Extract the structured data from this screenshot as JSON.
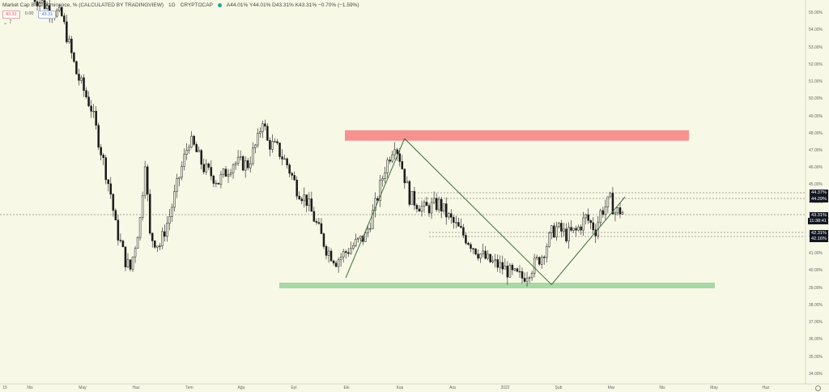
{
  "header": {
    "title": "Market Cap BTC Dominance, % (CALCULATED BY TRADINGVIEW)",
    "interval": "1G",
    "source": "CRYPTOCAP",
    "ohlc": "A44.01% Y44.01% D43.31% K43.31% −0.70% (−1.59%)"
  },
  "pills": {
    "sell": "43.31",
    "spread": "0.00",
    "buy": "43.31"
  },
  "collapse": {
    "chevron": "⌄",
    "count": "7"
  },
  "price_tags": {
    "top_resistance_a": "44.37%",
    "top_resistance_b": "44.29%",
    "current_price": "43.31%",
    "countdown": "11:38:41",
    "support_a": "42.31%",
    "support_b": "42.16%"
  },
  "colors": {
    "background": "#f8f8e6",
    "resistance_zone": "#f5928f",
    "support_zone": "#a8d8a5",
    "candles": "#1a1a1a",
    "trend_line": "#3a6b3a"
  },
  "chart_data": {
    "type": "candlestick",
    "title": "Market Cap BTC Dominance, %",
    "ylabel": "",
    "ylim": [
      33.8,
      55.2
    ],
    "y_ticks": [
      "55.00%",
      "54.00%",
      "53.00%",
      "52.00%",
      "51.00%",
      "50.00%",
      "49.00%",
      "48.00%",
      "47.00%",
      "46.00%",
      "45.00%",
      "44.00%",
      "43.00%",
      "42.00%",
      "41.00%",
      "40.00%",
      "39.00%",
      "38.00%",
      "37.00%",
      "36.00%",
      "35.00%",
      "34.00%"
    ],
    "x_ticks": [
      "15",
      "Nis",
      "May",
      "Haz",
      "Tem",
      "Ağu",
      "Eyl",
      "Eki",
      "Kas",
      "Ara",
      "2022",
      "Şub",
      "Mar",
      "Nis",
      "May",
      "Haz"
    ],
    "price_path": [
      [
        0,
        56.0
      ],
      [
        6,
        54.8
      ],
      [
        9,
        51.5
      ],
      [
        12,
        49.5
      ],
      [
        14,
        47.0
      ],
      [
        16,
        44.5
      ],
      [
        17,
        42.6
      ],
      [
        19,
        40.6
      ],
      [
        20,
        40.1
      ],
      [
        22,
        43.0
      ],
      [
        23,
        46.5
      ],
      [
        24,
        42.0
      ],
      [
        26,
        41.5
      ],
      [
        28,
        43.2
      ],
      [
        30,
        45.5
      ],
      [
        32,
        47.6
      ],
      [
        33,
        47.2
      ],
      [
        35,
        46.0
      ],
      [
        38,
        45.2
      ],
      [
        41,
        46.3
      ],
      [
        44,
        46.2
      ],
      [
        46,
        47.6
      ],
      [
        47,
        48.9
      ],
      [
        48,
        47.5
      ],
      [
        50,
        47.1
      ],
      [
        52,
        46.2
      ],
      [
        54,
        44.8
      ],
      [
        56,
        44.1
      ],
      [
        58,
        42.7
      ],
      [
        60,
        41.3
      ],
      [
        62,
        40.6
      ],
      [
        64,
        41.1
      ],
      [
        66,
        41.6
      ],
      [
        68,
        42.0
      ],
      [
        70,
        43.8
      ],
      [
        72,
        46.0
      ],
      [
        74,
        47.5
      ],
      [
        75,
        46.6
      ],
      [
        77,
        44.3
      ],
      [
        80,
        43.6
      ],
      [
        83,
        43.9
      ],
      [
        85,
        43.1
      ],
      [
        88,
        42.1
      ],
      [
        91,
        41.1
      ],
      [
        93,
        40.6
      ],
      [
        96,
        40.2
      ],
      [
        98,
        39.8
      ],
      [
        100,
        39.6
      ],
      [
        102,
        40.2
      ],
      [
        104,
        40.9
      ],
      [
        106,
        42.2
      ],
      [
        107,
        42.5
      ],
      [
        109,
        42.1
      ],
      [
        111,
        42.3
      ],
      [
        113,
        43.1
      ],
      [
        115,
        42.4
      ],
      [
        116,
        43.4
      ],
      [
        118,
        44.1
      ],
      [
        119,
        43.4
      ],
      [
        120,
        43.5
      ],
      [
        121,
        43.31
      ]
    ],
    "resistance_zone": [
      47.6,
      48.0
    ],
    "support_zone": [
      39.1,
      39.3
    ],
    "horizontal_levels": [
      44.37,
      44.29,
      43.31,
      42.31,
      42.16
    ],
    "trend_lines": [
      [
        [
          62,
          39.6
        ],
        [
          74,
          47.7
        ]
      ],
      [
        [
          74,
          47.7
        ],
        [
          104,
          39.2
        ]
      ],
      [
        [
          104,
          39.2
        ],
        [
          119,
          44.3
        ]
      ]
    ]
  }
}
